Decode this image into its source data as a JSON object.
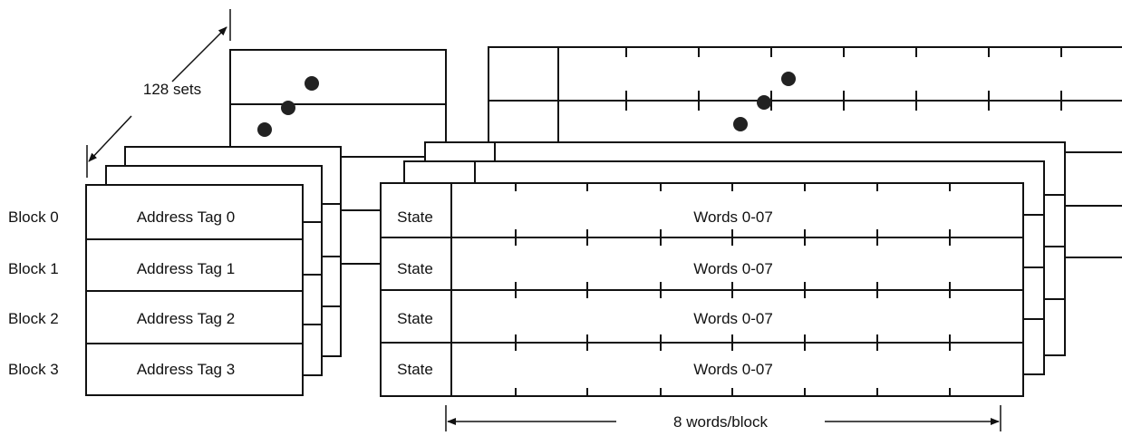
{
  "sets_label": "128 sets",
  "rows": [
    {
      "block": "Block 0",
      "tag": "Address Tag 0",
      "state": "State",
      "words": "Words 0-07"
    },
    {
      "block": "Block 1",
      "tag": "Address Tag 1",
      "state": "State",
      "words": "Words 0-07"
    },
    {
      "block": "Block 2",
      "tag": "Address Tag 2",
      "state": "State",
      "words": "Words 0-07"
    },
    {
      "block": "Block 3",
      "tag": "Address Tag 3",
      "state": "State",
      "words": "Words 0-07"
    }
  ],
  "width_label": "8 words/block"
}
